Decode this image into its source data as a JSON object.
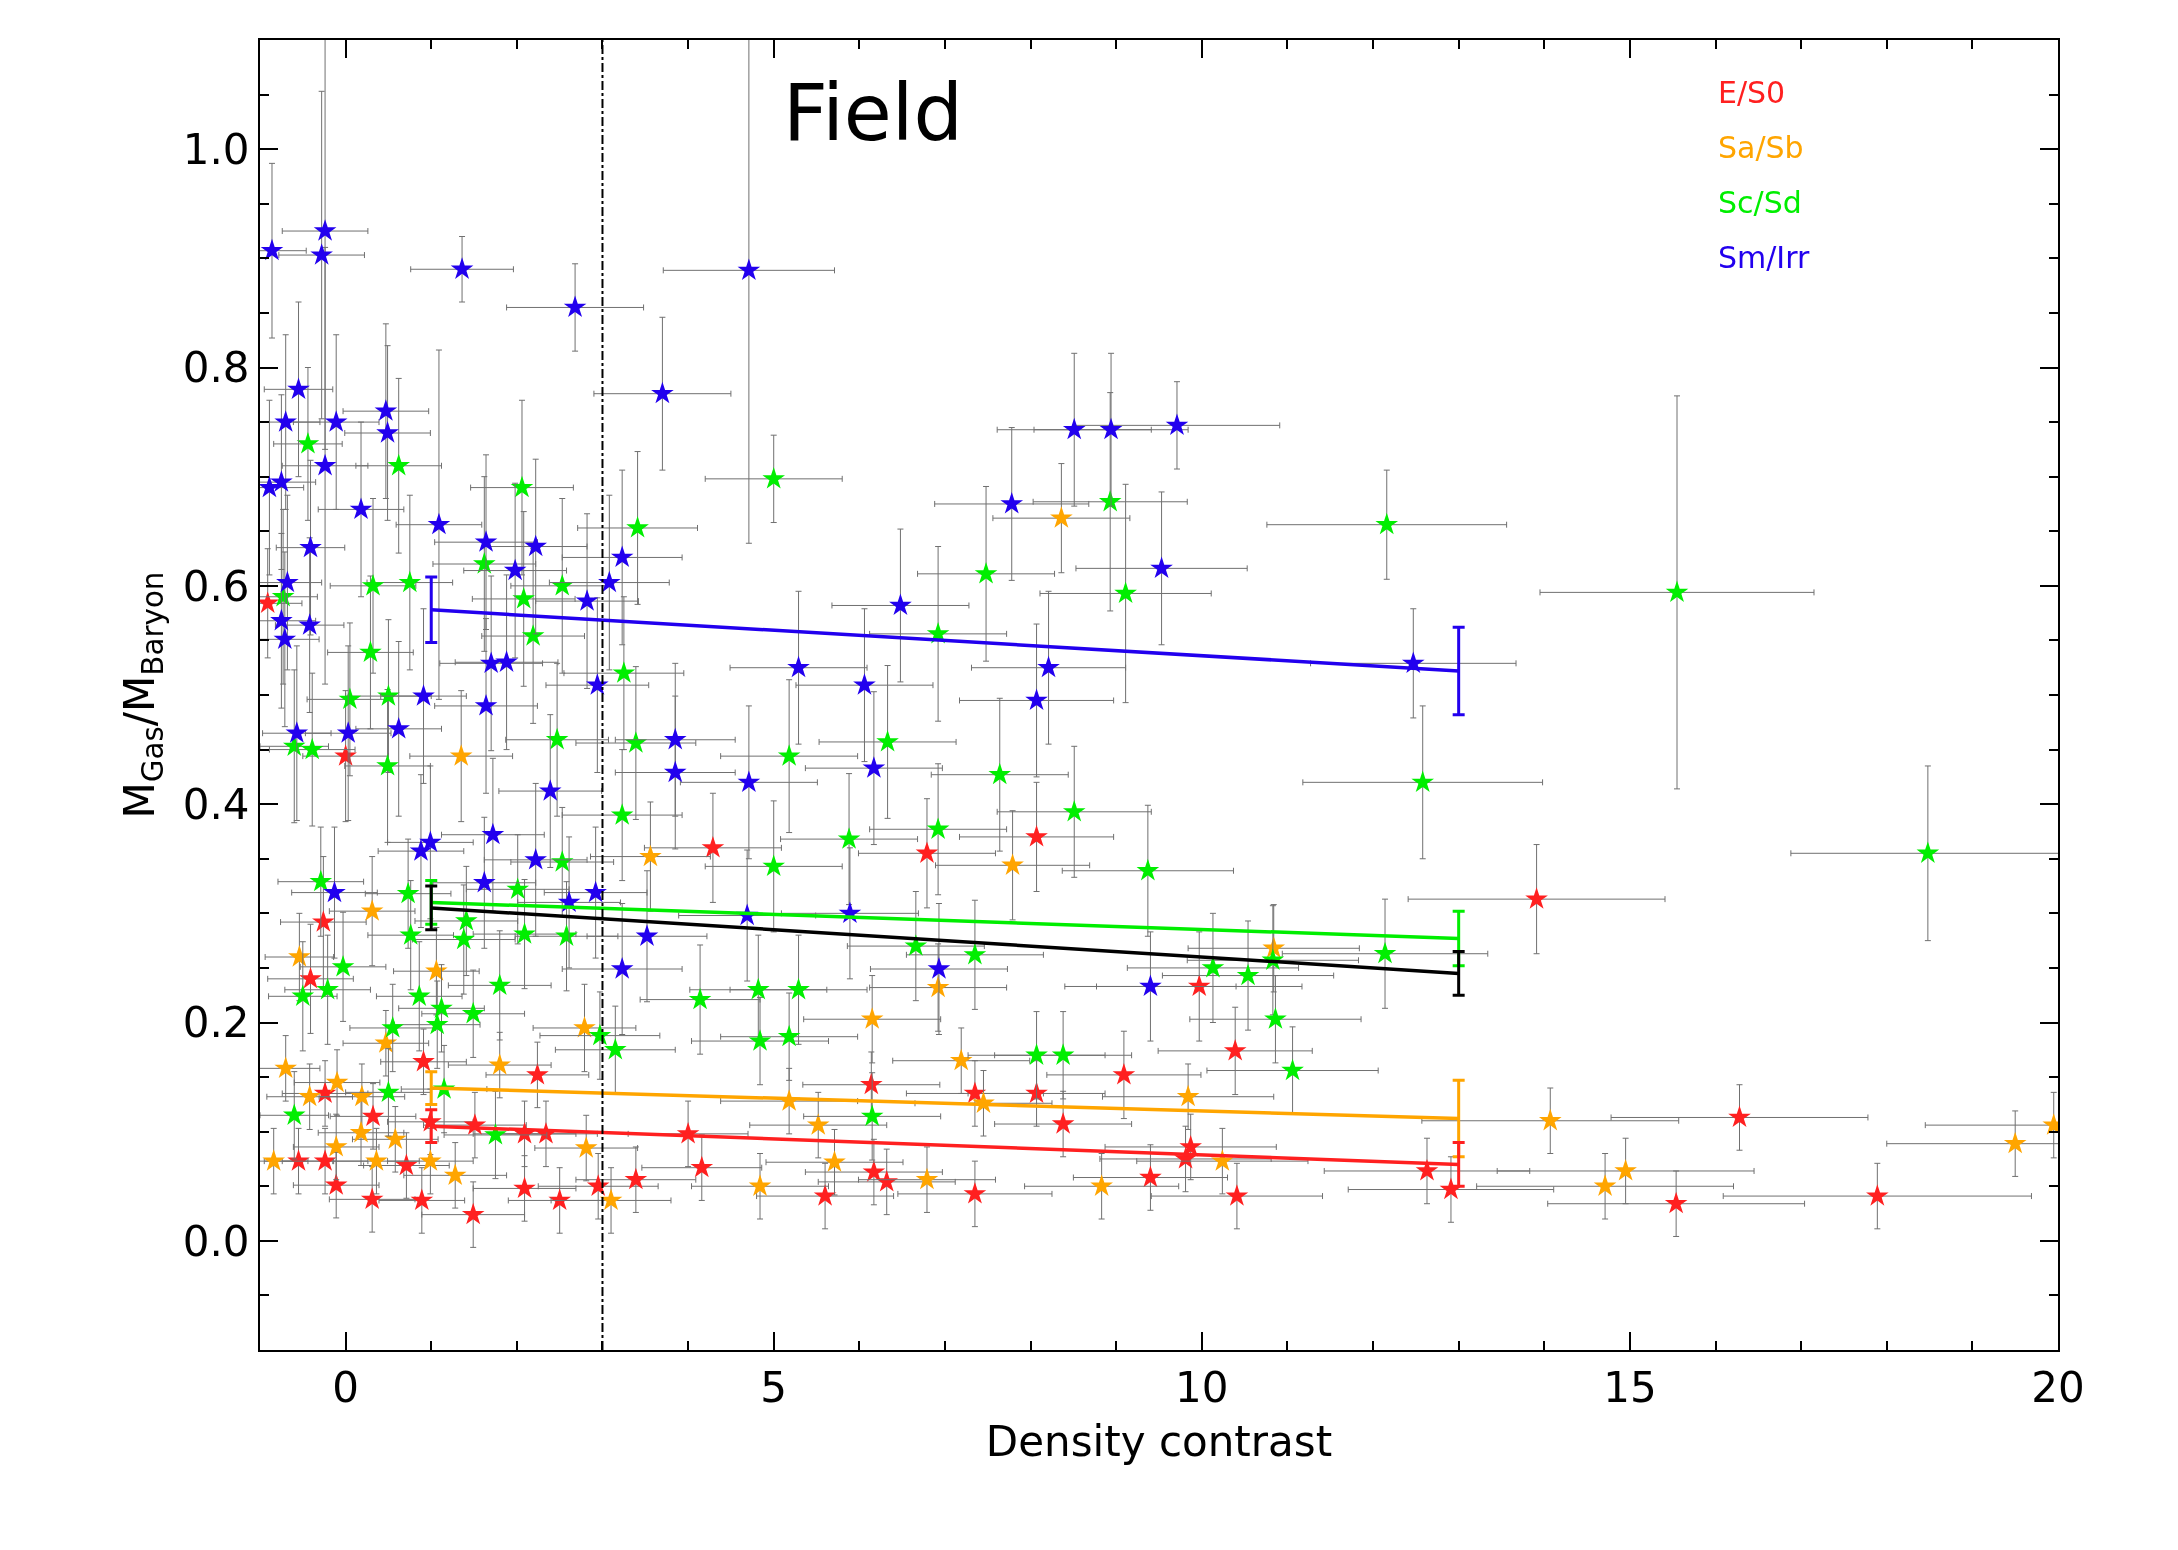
{
  "chart_data": {
    "type": "scatter",
    "xlabel": "Density contrast",
    "ylabel": "M$_{Gas}$/M$_{Baryon}$",
    "annotations": [
      "Field"
    ],
    "xlim": [
      -1,
      20
    ],
    "xticks": [
      0,
      5,
      10,
      15,
      20
    ],
    "ylim": [
      -0.1,
      1.1
    ],
    "yticks": [
      {
        "value": 0,
        "label": "0.0"
      },
      {
        "value": 0.2,
        "label": "0.2"
      },
      {
        "value": 0.4,
        "label": "0.4"
      },
      {
        "value": 0.6,
        "label": "0.6"
      },
      {
        "value": 0.8,
        "label": "0.8"
      },
      {
        "value": 1.0,
        "label": "1.0"
      }
    ],
    "legend": "top right",
    "marker": "star",
    "ref_lines": [
      {
        "axis": "x",
        "value": 3,
        "color": "#000000",
        "line_style": "dashdot"
      }
    ],
    "series": [
      {
        "name": "E/S0",
        "color": "#ff2020",
        "x": [
          -0.91,
          0.0,
          -0.26,
          -0.41,
          4.29,
          6.79,
          8.07,
          13.91,
          9.97,
          10.39,
          9.09,
          8.07,
          6.14,
          7.35,
          2.24,
          0.91,
          -0.24,
          0.32,
          0.99,
          1.51,
          2.09,
          2.34,
          4.0,
          8.38,
          9.87,
          16.28,
          -0.55,
          -0.24,
          -0.11,
          0.31,
          0.71,
          0.89,
          1.49,
          2.09,
          2.5,
          2.95,
          3.39,
          4.16,
          5.6,
          6.17,
          6.32,
          7.35,
          9.4,
          9.81,
          10.41,
          12.63,
          12.91,
          15.54,
          17.89
        ],
        "values": [
          0.584,
          0.444,
          0.292,
          0.24,
          0.36,
          0.355,
          0.37,
          0.313,
          0.233,
          0.174,
          0.152,
          0.135,
          0.143,
          0.135,
          0.152,
          0.164,
          0.135,
          0.114,
          0.109,
          0.106,
          0.098,
          0.098,
          0.098,
          0.107,
          0.086,
          0.113,
          0.073,
          0.073,
          0.051,
          0.038,
          0.069,
          0.037,
          0.024,
          0.048,
          0.037,
          0.05,
          0.056,
          0.067,
          0.041,
          0.063,
          0.054,
          0.043,
          0.058,
          0.075,
          0.041,
          0.064,
          0.047,
          0.034,
          0.041
        ],
        "xerrors": [
          0.4,
          0.5,
          0.5,
          0.5,
          0.8,
          0.8,
          0.9,
          1.5,
          1.2,
          0.9,
          0.9,
          0.8,
          0.8,
          0.8,
          0.6,
          0.5,
          0.5,
          0.5,
          0.5,
          0.6,
          0.6,
          0.6,
          0.7,
          0.8,
          1.0,
          1.5,
          0.4,
          0.5,
          0.5,
          0.5,
          0.5,
          0.5,
          0.6,
          0.6,
          0.6,
          0.7,
          0.7,
          0.7,
          0.8,
          0.8,
          0.8,
          0.9,
          0.9,
          1.0,
          1.0,
          1.2,
          1.2,
          1.5,
          1.8
        ],
        "errors": [
          0.05,
          0.06,
          0.06,
          0.05,
          0.05,
          0.05,
          0.05,
          0.05,
          0.05,
          0.04,
          0.04,
          0.03,
          0.03,
          0.03,
          0.03,
          0.03,
          0.03,
          0.03,
          0.03,
          0.03,
          0.03,
          0.03,
          0.03,
          0.03,
          0.03,
          0.03,
          0.03,
          0.03,
          0.03,
          0.03,
          0.03,
          0.03,
          0.03,
          0.03,
          0.03,
          0.03,
          0.03,
          0.03,
          0.03,
          0.03,
          0.03,
          0.03,
          0.03,
          0.03,
          0.03,
          0.03,
          0.03,
          0.03,
          0.03
        ]
      },
      {
        "name": "Sa/Sb",
        "color": "#ffa500",
        "x": [
          8.36,
          1.35,
          3.56,
          7.79,
          0.31,
          -0.54,
          1.06,
          6.15,
          6.92,
          10.84,
          2.79,
          -0.7,
          0.47,
          1.8,
          -0.1,
          -0.42,
          0.19,
          7.19,
          9.84,
          7.45,
          5.18,
          5.52,
          14.07,
          19.95,
          19.5,
          0.18,
          0.58,
          -0.11,
          0.99,
          -0.84,
          0.36,
          1.28,
          2.81,
          5.71,
          3.1,
          4.84,
          6.79,
          8.83,
          10.24,
          14.71,
          14.95
        ],
        "values": [
          0.662,
          0.444,
          0.352,
          0.344,
          0.302,
          0.26,
          0.247,
          0.203,
          0.232,
          0.268,
          0.195,
          0.158,
          0.181,
          0.161,
          0.145,
          0.132,
          0.132,
          0.165,
          0.132,
          0.126,
          0.128,
          0.106,
          0.11,
          0.106,
          0.089,
          0.099,
          0.093,
          0.086,
          0.073,
          0.073,
          0.073,
          0.06,
          0.085,
          0.072,
          0.037,
          0.05,
          0.056,
          0.05,
          0.073,
          0.05,
          0.064
        ],
        "xerrors": [
          0.8,
          0.6,
          0.7,
          0.9,
          0.5,
          0.4,
          0.5,
          0.8,
          0.8,
          1.0,
          0.6,
          0.4,
          0.5,
          0.6,
          0.5,
          0.5,
          0.5,
          0.8,
          1.0,
          0.8,
          0.8,
          0.8,
          1.5,
          1.5,
          1.5,
          0.5,
          0.5,
          0.5,
          0.5,
          0.4,
          0.5,
          0.6,
          0.6,
          0.8,
          0.7,
          0.8,
          0.8,
          0.9,
          1.0,
          1.5,
          1.5
        ],
        "errors": [
          0.05,
          0.06,
          0.05,
          0.05,
          0.05,
          0.04,
          0.04,
          0.04,
          0.04,
          0.04,
          0.04,
          0.03,
          0.03,
          0.03,
          0.03,
          0.03,
          0.03,
          0.03,
          0.03,
          0.03,
          0.03,
          0.03,
          0.03,
          0.03,
          0.03,
          0.03,
          0.03,
          0.03,
          0.03,
          0.03,
          0.03,
          0.03,
          0.03,
          0.03,
          0.03,
          0.03,
          0.03,
          0.03,
          0.03,
          0.03,
          0.03
        ]
      },
      {
        "name": "Sc/Sd",
        "color": "#00ee00",
        "x": [
          -0.44,
          0.62,
          2.06,
          5.0,
          8.93,
          12.16,
          15.55,
          9.11,
          7.48,
          3.41,
          -0.73,
          0.32,
          0.75,
          1.62,
          2.53,
          2.08,
          2.19,
          0.29,
          0.5,
          0.05,
          3.25,
          6.92,
          5.18,
          6.33,
          7.64,
          8.51,
          12.58,
          18.48,
          -0.6,
          -0.39,
          0.49,
          2.47,
          3.39,
          3.23,
          5.0,
          6.92,
          5.88,
          9.37,
          -0.29,
          0.73,
          2.53,
          2.01,
          1.41,
          2.09,
          0.76,
          1.38,
          2.58,
          6.66,
          -0.03,
          -0.21,
          -0.5,
          0.86,
          1.8,
          4.14,
          4.82,
          5.29,
          7.35,
          10.83,
          12.14,
          10.13,
          10.54,
          0.55,
          1.12,
          1.49,
          1.07,
          2.97,
          3.15,
          4.84,
          5.18,
          10.86,
          11.06,
          8.07,
          8.38,
          6.15,
          0.5,
          -0.6,
          1.75,
          1.15
        ],
        "values": [
          0.73,
          0.71,
          0.69,
          0.698,
          0.677,
          0.656,
          0.594,
          0.593,
          0.611,
          0.653,
          0.59,
          0.6,
          0.603,
          0.62,
          0.6,
          0.588,
          0.554,
          0.539,
          0.499,
          0.496,
          0.52,
          0.556,
          0.444,
          0.457,
          0.427,
          0.393,
          0.42,
          0.355,
          0.453,
          0.45,
          0.435,
          0.459,
          0.456,
          0.39,
          0.343,
          0.377,
          0.368,
          0.339,
          0.329,
          0.318,
          0.347,
          0.322,
          0.293,
          0.281,
          0.28,
          0.276,
          0.279,
          0.27,
          0.251,
          0.23,
          0.224,
          0.224,
          0.234,
          0.221,
          0.23,
          0.23,
          0.262,
          0.257,
          0.263,
          0.25,
          0.243,
          0.195,
          0.213,
          0.208,
          0.198,
          0.188,
          0.175,
          0.183,
          0.187,
          0.203,
          0.156,
          0.17,
          0.17,
          0.114,
          0.136,
          0.115,
          0.097,
          0.139
        ],
        "xerrors": [
          0.4,
          0.5,
          0.6,
          0.8,
          0.9,
          1.4,
          1.6,
          1.0,
          0.8,
          0.7,
          0.4,
          0.5,
          0.5,
          0.6,
          0.6,
          0.6,
          0.6,
          0.5,
          0.5,
          0.5,
          0.7,
          0.8,
          0.8,
          0.8,
          0.8,
          0.9,
          1.4,
          1.6,
          0.4,
          0.5,
          0.5,
          0.6,
          0.7,
          0.7,
          0.8,
          0.8,
          0.8,
          1.0,
          0.5,
          0.5,
          0.6,
          0.6,
          0.6,
          0.6,
          0.5,
          0.6,
          0.6,
          0.8,
          0.5,
          0.5,
          0.4,
          0.5,
          0.6,
          0.7,
          0.8,
          0.8,
          0.8,
          1.0,
          1.2,
          1.0,
          1.0,
          0.5,
          0.5,
          0.6,
          0.5,
          0.7,
          0.7,
          0.8,
          0.8,
          1.0,
          1.0,
          0.8,
          0.8,
          0.8,
          0.5,
          0.4,
          0.6,
          0.5
        ],
        "errors": [
          0.07,
          0.08,
          0.08,
          0.04,
          0.1,
          0.05,
          0.18,
          0.1,
          0.08,
          0.07,
          0.08,
          0.08,
          0.08,
          0.08,
          0.08,
          0.08,
          0.08,
          0.07,
          0.07,
          0.07,
          0.07,
          0.08,
          0.07,
          0.07,
          0.07,
          0.06,
          0.07,
          0.08,
          0.07,
          0.07,
          0.07,
          0.07,
          0.07,
          0.06,
          0.06,
          0.06,
          0.06,
          0.06,
          0.05,
          0.05,
          0.05,
          0.05,
          0.05,
          0.05,
          0.05,
          0.05,
          0.05,
          0.05,
          0.05,
          0.05,
          0.05,
          0.05,
          0.05,
          0.05,
          0.05,
          0.05,
          0.05,
          0.05,
          0.05,
          0.05,
          0.05,
          0.04,
          0.04,
          0.04,
          0.04,
          0.04,
          0.04,
          0.04,
          0.04,
          0.04,
          0.04,
          0.04,
          0.04,
          0.04,
          0.04,
          0.04,
          0.04,
          0.04
        ]
      },
      {
        "name": "Sm/Irr",
        "color": "#2200ee",
        "x": [
          -0.86,
          -0.24,
          -0.28,
          1.36,
          2.68,
          4.71,
          3.7,
          -0.55,
          -0.7,
          -0.11,
          0.47,
          0.49,
          -0.89,
          -0.75,
          -0.24,
          0.18,
          -0.41,
          1.09,
          1.64,
          2.22,
          1.98,
          3.23,
          3.08,
          2.82,
          -0.68,
          -0.75,
          -0.71,
          -0.42,
          6.48,
          9.53,
          8.51,
          8.94,
          9.71,
          7.78,
          5.29,
          6.06,
          8.21,
          8.07,
          12.47,
          2.94,
          1.7,
          1.88,
          1.64,
          0.91,
          -0.57,
          0.03,
          0.62,
          3.85,
          3.85,
          4.71,
          6.17,
          2.39,
          1.72,
          0.99,
          0.88,
          2.22,
          -0.13,
          1.62,
          2.61,
          2.92,
          4.69,
          5.89,
          3.52,
          3.23,
          6.93,
          9.4
        ],
        "values": [
          0.907,
          0.925,
          0.903,
          0.89,
          0.855,
          0.889,
          0.776,
          0.78,
          0.75,
          0.75,
          0.76,
          0.74,
          0.69,
          0.695,
          0.71,
          0.67,
          0.635,
          0.656,
          0.64,
          0.636,
          0.614,
          0.626,
          0.603,
          0.586,
          0.603,
          0.568,
          0.551,
          0.564,
          0.582,
          0.616,
          0.743,
          0.743,
          0.747,
          0.675,
          0.525,
          0.509,
          0.525,
          0.495,
          0.529,
          0.509,
          0.529,
          0.53,
          0.49,
          0.499,
          0.465,
          0.465,
          0.469,
          0.459,
          0.429,
          0.42,
          0.433,
          0.412,
          0.372,
          0.365,
          0.357,
          0.349,
          0.319,
          0.328,
          0.31,
          0.319,
          0.298,
          0.3,
          0.279,
          0.249,
          0.249,
          0.233
        ],
        "xerrors": [
          0.4,
          0.5,
          0.5,
          0.6,
          0.8,
          1.0,
          0.8,
          0.4,
          0.4,
          0.5,
          0.5,
          0.5,
          0.4,
          0.4,
          0.5,
          0.5,
          0.4,
          0.5,
          0.6,
          0.6,
          0.6,
          0.7,
          0.7,
          0.6,
          0.4,
          0.4,
          0.4,
          0.4,
          0.8,
          1.0,
          0.9,
          0.9,
          1.2,
          0.9,
          0.8,
          0.8,
          0.9,
          0.9,
          1.2,
          0.6,
          0.6,
          0.6,
          0.6,
          0.5,
          0.4,
          0.5,
          0.5,
          0.7,
          0.7,
          0.8,
          0.8,
          0.6,
          0.6,
          0.5,
          0.5,
          0.6,
          0.5,
          0.6,
          0.6,
          0.6,
          0.8,
          0.8,
          0.7,
          0.7,
          0.8,
          1.0
        ],
        "errors": [
          0.08,
          0.2,
          0.15,
          0.03,
          0.04,
          0.25,
          0.07,
          0.08,
          0.08,
          0.08,
          0.08,
          0.08,
          0.08,
          0.08,
          0.2,
          0.08,
          0.08,
          0.16,
          0.08,
          0.08,
          0.08,
          0.08,
          0.08,
          0.08,
          0.08,
          0.08,
          0.08,
          0.08,
          0.07,
          0.07,
          0.07,
          0.07,
          0.04,
          0.07,
          0.07,
          0.07,
          0.07,
          0.07,
          0.05,
          0.08,
          0.08,
          0.08,
          0.08,
          0.08,
          0.08,
          0.08,
          0.08,
          0.07,
          0.07,
          0.07,
          0.07,
          0.07,
          0.07,
          0.07,
          0.07,
          0.07,
          0.06,
          0.06,
          0.06,
          0.06,
          0.06,
          0.06,
          0.06,
          0.06,
          0.06,
          0.05
        ]
      },
      {
        "type": "line",
        "marker": "none",
        "color": "#2200ee",
        "x": [
          1,
          13
        ],
        "values": [
          0.578,
          0.522
        ],
        "errors": [
          0.03,
          0.04
        ]
      },
      {
        "type": "line",
        "marker": "none",
        "color": "#00ee00",
        "x": [
          1,
          13
        ],
        "values": [
          0.31,
          0.277
        ],
        "errors": [
          0.02,
          0.025
        ]
      },
      {
        "type": "line",
        "marker": "none",
        "color": "#000000",
        "x": [
          1,
          13
        ],
        "values": [
          0.305,
          0.245
        ],
        "errors": [
          0.02,
          0.02
        ]
      },
      {
        "type": "line",
        "marker": "none",
        "color": "#ffa500",
        "x": [
          1,
          13
        ],
        "values": [
          0.14,
          0.112
        ],
        "errors": [
          0.015,
          0.035
        ]
      },
      {
        "type": "line",
        "marker": "none",
        "color": "#ff2020",
        "x": [
          1,
          13
        ],
        "values": [
          0.105,
          0.07
        ],
        "errors": [
          0.015,
          0.02
        ]
      }
    ]
  }
}
